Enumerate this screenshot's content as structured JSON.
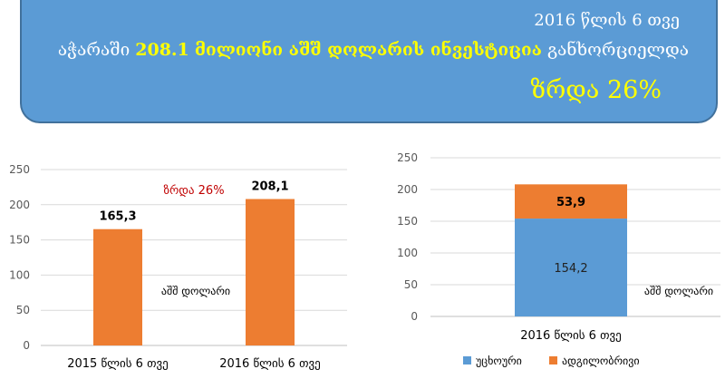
{
  "banner": {
    "date": "2016 წლის 6 თვე",
    "prefix": "აჭარაში",
    "amount": "208.1",
    "headline": "მილიონი აშშ დოლარის ინვესტიცია",
    "suffix": "განხორციელდა",
    "growth": "ზრდა 26%"
  },
  "colors": {
    "banner": "#5b9bd5",
    "orange": "#ed7d31",
    "blue": "#5b9bd5",
    "growth_red": "#c00000",
    "highlight": "#ffff00"
  },
  "chart_data": [
    {
      "type": "bar",
      "categories": [
        "2015 წლის 6 თვე",
        "2016 წლის 6 თვე"
      ],
      "values": [
        165.3,
        208.1
      ],
      "value_labels": [
        "165,3",
        "208,1"
      ],
      "ylim": [
        0,
        250
      ],
      "yticks": [
        0,
        50,
        100,
        150,
        200,
        250
      ],
      "unit_label": "აშშ დოლარი",
      "annotation": "ზრდა 26%",
      "grid": true
    },
    {
      "type": "bar",
      "stacked": true,
      "categories": [
        "2016 წლის 6 თვე"
      ],
      "series": [
        {
          "name": "უცხოური",
          "values": [
            154.2
          ],
          "label": "154,2",
          "color": "#5b9bd5"
        },
        {
          "name": "ადგილობრივი",
          "values": [
            53.9
          ],
          "label": "53,9",
          "color": "#ed7d31"
        }
      ],
      "ylim": [
        0,
        250
      ],
      "yticks": [
        0,
        50,
        100,
        150,
        200,
        250
      ],
      "unit_label": "აშშ დოლარი",
      "legend": "bottom",
      "grid": true
    }
  ]
}
